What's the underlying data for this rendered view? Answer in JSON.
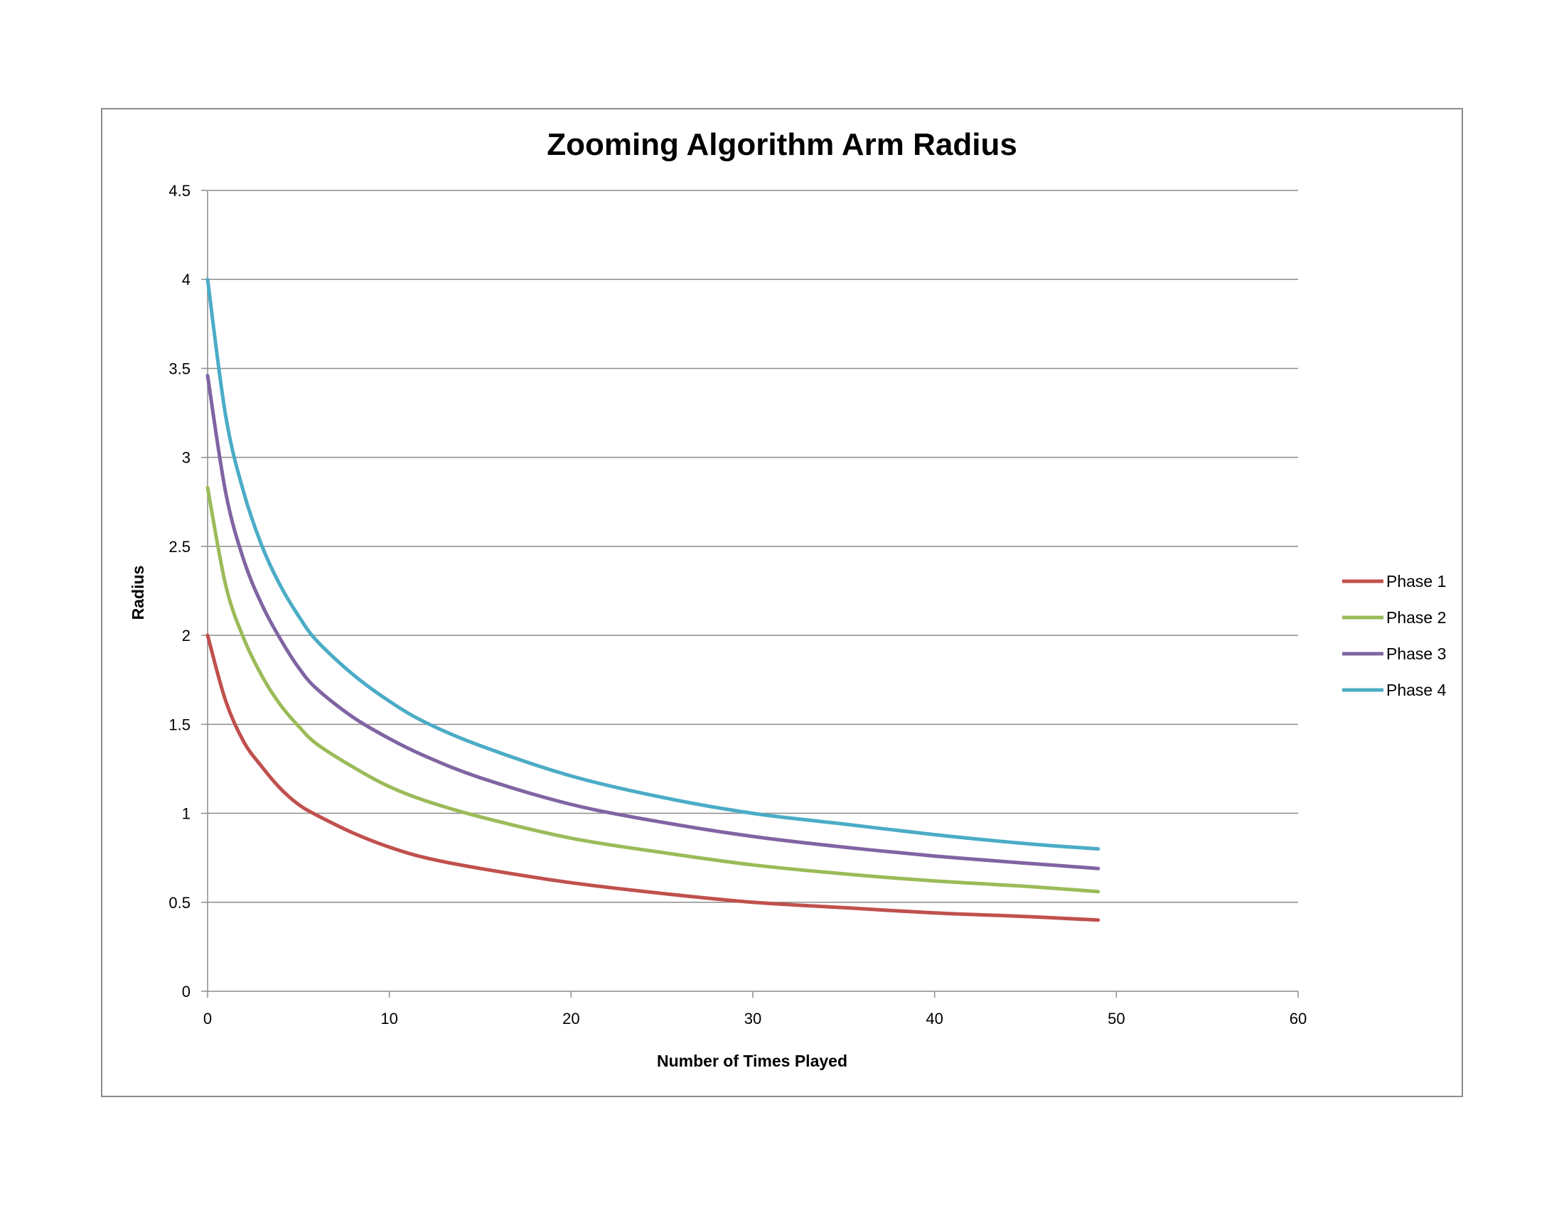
{
  "chart_data": {
    "type": "line",
    "title": "Zooming Algorithm Arm Radius",
    "xlabel": "Number of Times Played",
    "ylabel": "Radius",
    "xlim": [
      0,
      60
    ],
    "ylim": [
      0,
      4.5
    ],
    "xticks": [
      "0",
      "10",
      "20",
      "30",
      "40",
      "50",
      "60"
    ],
    "yticks": [
      "0",
      "0.5",
      "1",
      "1.5",
      "2",
      "2.5",
      "3",
      "3.5",
      "4",
      "4.5"
    ],
    "grid": "horizontal",
    "legend_position": "right",
    "x": [
      0,
      1,
      2,
      3,
      4,
      5,
      6,
      8,
      10,
      12,
      15,
      20,
      25,
      30,
      35,
      40,
      45,
      49
    ],
    "series": [
      {
        "name": "Phase 1",
        "color": "#c0504d",
        "values": [
          2.0,
          1.63,
          1.4,
          1.26,
          1.14,
          1.05,
          0.99,
          0.89,
          0.81,
          0.75,
          0.69,
          0.61,
          0.55,
          0.5,
          0.47,
          0.44,
          0.42,
          0.4
        ]
      },
      {
        "name": "Phase 2",
        "color": "#9bbb59",
        "values": [
          2.83,
          2.28,
          1.98,
          1.77,
          1.61,
          1.49,
          1.39,
          1.26,
          1.15,
          1.07,
          0.98,
          0.86,
          0.78,
          0.71,
          0.66,
          0.62,
          0.59,
          0.56
        ]
      },
      {
        "name": "Phase 3",
        "color": "#8064a2",
        "values": [
          3.46,
          2.8,
          2.42,
          2.17,
          1.98,
          1.82,
          1.7,
          1.54,
          1.42,
          1.32,
          1.2,
          1.05,
          0.95,
          0.87,
          0.81,
          0.76,
          0.72,
          0.69
        ]
      },
      {
        "name": "Phase 4",
        "color": "#4bacc6",
        "values": [
          4.0,
          3.23,
          2.8,
          2.5,
          2.28,
          2.11,
          1.97,
          1.78,
          1.63,
          1.51,
          1.38,
          1.21,
          1.09,
          1.0,
          0.94,
          0.88,
          0.83,
          0.8
        ]
      }
    ]
  }
}
